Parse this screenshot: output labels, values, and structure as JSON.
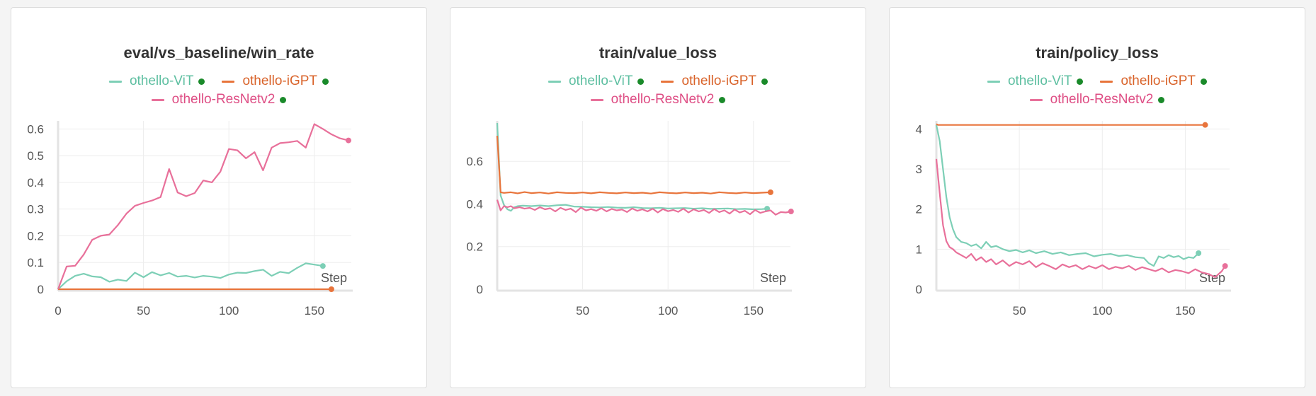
{
  "colors": {
    "vit": "#7dcfb6",
    "igpt": "#e8743b",
    "resnet": "#e8709a",
    "status_dot": "#1a8a2a",
    "axis": "#e3e3e3",
    "grid": "#ededed",
    "tick_text": "#555555"
  },
  "chart_data": [
    {
      "type": "line",
      "title": "eval/vs_baseline/win_rate",
      "xlabel": "Step",
      "ylabel": "",
      "xlim": [
        0,
        170
      ],
      "ylim": [
        0,
        0.63
      ],
      "x_ticks": [
        0,
        50,
        100,
        150
      ],
      "x_tick_labels": [
        "0",
        "50",
        "100",
        "150"
      ],
      "y_ticks": [
        0,
        0.1,
        0.2,
        0.3,
        0.4,
        0.5,
        0.6
      ],
      "y_tick_labels": [
        "0",
        "0.1",
        "0.2",
        "0.3",
        "0.4",
        "0.5",
        "0.6"
      ],
      "grid": true,
      "legend": "top-center",
      "series": [
        {
          "name": "othello-ViT",
          "color_key": "vit",
          "x": [
            0,
            5,
            10,
            15,
            20,
            25,
            30,
            35,
            40,
            45,
            50,
            55,
            60,
            65,
            70,
            75,
            80,
            85,
            90,
            95,
            100,
            105,
            110,
            115,
            120,
            125,
            130,
            135,
            140,
            145,
            150,
            155
          ],
          "y": [
            0,
            0.03,
            0.05,
            0.058,
            0.048,
            0.045,
            0.028,
            0.036,
            0.031,
            0.062,
            0.045,
            0.064,
            0.052,
            0.061,
            0.047,
            0.05,
            0.044,
            0.05,
            0.047,
            0.042,
            0.055,
            0.062,
            0.061,
            0.068,
            0.073,
            0.05,
            0.065,
            0.06,
            0.08,
            0.097,
            0.092,
            0.087
          ]
        },
        {
          "name": "othello-iGPT",
          "color_key": "igpt",
          "x": [
            0,
            40,
            80,
            120,
            160
          ],
          "y": [
            0,
            0,
            0,
            0,
            0
          ]
        },
        {
          "name": "othello-ResNetv2",
          "color_key": "resnet",
          "x": [
            0,
            5,
            10,
            15,
            20,
            25,
            30,
            35,
            40,
            45,
            50,
            55,
            60,
            65,
            70,
            75,
            80,
            85,
            90,
            95,
            100,
            105,
            110,
            115,
            120,
            125,
            130,
            135,
            140,
            145,
            150,
            155,
            160,
            165,
            170
          ],
          "y": [
            0,
            0.085,
            0.088,
            0.13,
            0.185,
            0.2,
            0.205,
            0.24,
            0.283,
            0.312,
            0.323,
            0.332,
            0.345,
            0.45,
            0.362,
            0.348,
            0.36,
            0.407,
            0.4,
            0.44,
            0.525,
            0.52,
            0.49,
            0.513,
            0.445,
            0.53,
            0.547,
            0.55,
            0.555,
            0.53,
            0.618,
            0.6,
            0.58,
            0.565,
            0.557
          ]
        }
      ]
    },
    {
      "type": "line",
      "title": "train/value_loss",
      "xlabel": "Step",
      "ylabel": "",
      "xlim": [
        0,
        170
      ],
      "ylim": [
        0,
        0.79
      ],
      "x_ticks": [
        50,
        100,
        150
      ],
      "x_tick_labels": [
        "50",
        "100",
        "150"
      ],
      "y_ticks": [
        0,
        0.2,
        0.4,
        0.6
      ],
      "y_tick_labels": [
        "0",
        "0.2",
        "0.4",
        "0.6"
      ],
      "grid": true,
      "legend": "top-center",
      "series": [
        {
          "name": "othello-ViT",
          "color_key": "vit",
          "x": [
            0,
            2,
            4,
            6,
            8,
            10,
            12,
            15,
            20,
            25,
            30,
            35,
            40,
            45,
            50,
            55,
            60,
            65,
            70,
            75,
            80,
            85,
            90,
            95,
            100,
            105,
            110,
            115,
            120,
            125,
            130,
            135,
            140,
            145,
            150,
            155,
            158
          ],
          "y": [
            0.78,
            0.44,
            0.395,
            0.375,
            0.368,
            0.385,
            0.39,
            0.392,
            0.39,
            0.393,
            0.39,
            0.394,
            0.396,
            0.388,
            0.387,
            0.385,
            0.384,
            0.386,
            0.383,
            0.382,
            0.385,
            0.381,
            0.38,
            0.382,
            0.379,
            0.38,
            0.381,
            0.378,
            0.38,
            0.377,
            0.378,
            0.379,
            0.376,
            0.377,
            0.375,
            0.376,
            0.378
          ]
        },
        {
          "name": "othello-iGPT",
          "color_key": "igpt",
          "x": [
            0,
            2,
            4,
            8,
            12,
            16,
            20,
            25,
            30,
            35,
            40,
            45,
            50,
            55,
            60,
            65,
            70,
            75,
            80,
            85,
            90,
            95,
            100,
            105,
            110,
            115,
            120,
            125,
            130,
            135,
            140,
            145,
            150,
            155,
            160
          ],
          "y": [
            0.72,
            0.455,
            0.452,
            0.455,
            0.45,
            0.456,
            0.451,
            0.454,
            0.449,
            0.455,
            0.452,
            0.451,
            0.454,
            0.45,
            0.455,
            0.452,
            0.45,
            0.454,
            0.451,
            0.453,
            0.449,
            0.455,
            0.452,
            0.45,
            0.454,
            0.451,
            0.453,
            0.449,
            0.455,
            0.452,
            0.45,
            0.454,
            0.451,
            0.453,
            0.455
          ]
        },
        {
          "name": "othello-ResNetv2",
          "color_key": "resnet",
          "x": [
            0,
            2,
            4,
            6,
            8,
            10,
            13,
            16,
            19,
            22,
            25,
            28,
            31,
            34,
            37,
            40,
            43,
            46,
            49,
            52,
            55,
            58,
            61,
            64,
            67,
            70,
            73,
            76,
            79,
            82,
            85,
            88,
            91,
            94,
            97,
            100,
            103,
            106,
            109,
            112,
            115,
            118,
            121,
            124,
            127,
            130,
            133,
            136,
            139,
            142,
            145,
            148,
            151,
            154,
            157,
            160,
            163,
            166,
            169,
            172
          ],
          "y": [
            0.42,
            0.37,
            0.39,
            0.385,
            0.39,
            0.38,
            0.385,
            0.378,
            0.382,
            0.372,
            0.385,
            0.375,
            0.38,
            0.365,
            0.382,
            0.372,
            0.378,
            0.362,
            0.383,
            0.37,
            0.376,
            0.368,
            0.38,
            0.365,
            0.377,
            0.37,
            0.374,
            0.362,
            0.379,
            0.368,
            0.375,
            0.365,
            0.378,
            0.36,
            0.376,
            0.366,
            0.372,
            0.363,
            0.378,
            0.36,
            0.375,
            0.365,
            0.372,
            0.358,
            0.376,
            0.362,
            0.37,
            0.355,
            0.374,
            0.36,
            0.368,
            0.352,
            0.372,
            0.358,
            0.365,
            0.37,
            0.35,
            0.362,
            0.36,
            0.365
          ]
        }
      ]
    },
    {
      "type": "line",
      "title": "train/policy_loss",
      "xlabel": "Step",
      "ylabel": "",
      "xlim": [
        0,
        175
      ],
      "ylim": [
        0,
        4.2
      ],
      "x_ticks": [
        50,
        100,
        150
      ],
      "x_tick_labels": [
        "50",
        "100",
        "150"
      ],
      "y_ticks": [
        0,
        1,
        2,
        3,
        4
      ],
      "y_tick_labels": [
        "0",
        "1",
        "2",
        "3",
        "4"
      ],
      "grid": true,
      "legend": "top-center",
      "series": [
        {
          "name": "othello-ViT",
          "color_key": "vit",
          "x": [
            0,
            2,
            4,
            6,
            8,
            10,
            12,
            15,
            18,
            21,
            24,
            27,
            30,
            33,
            36,
            40,
            44,
            48,
            52,
            56,
            60,
            65,
            70,
            75,
            80,
            85,
            90,
            95,
            100,
            105,
            110,
            115,
            120,
            125,
            128,
            131,
            134,
            137,
            140,
            143,
            146,
            149,
            152,
            155,
            158
          ],
          "y": [
            4.1,
            3.7,
            3.0,
            2.3,
            1.8,
            1.5,
            1.3,
            1.18,
            1.15,
            1.08,
            1.12,
            1.02,
            1.18,
            1.05,
            1.08,
            1.0,
            0.95,
            0.98,
            0.92,
            0.97,
            0.9,
            0.95,
            0.88,
            0.92,
            0.85,
            0.88,
            0.9,
            0.82,
            0.86,
            0.88,
            0.83,
            0.85,
            0.8,
            0.78,
            0.65,
            0.58,
            0.82,
            0.78,
            0.85,
            0.8,
            0.83,
            0.75,
            0.8,
            0.78,
            0.9
          ]
        },
        {
          "name": "othello-iGPT",
          "color_key": "igpt",
          "x": [
            0,
            1,
            10,
            20,
            40,
            60,
            80,
            100,
            120,
            140,
            162
          ],
          "y": [
            4.12,
            4.1,
            4.1,
            4.1,
            4.1,
            4.1,
            4.1,
            4.1,
            4.1,
            4.1,
            4.1
          ]
        },
        {
          "name": "othello-ResNetv2",
          "color_key": "resnet",
          "x": [
            0,
            2,
            4,
            6,
            8,
            10,
            12,
            15,
            18,
            21,
            24,
            27,
            30,
            33,
            36,
            40,
            44,
            48,
            52,
            56,
            60,
            64,
            68,
            72,
            76,
            80,
            84,
            88,
            92,
            96,
            100,
            104,
            108,
            112,
            116,
            120,
            124,
            128,
            132,
            136,
            140,
            144,
            148,
            152,
            156,
            160,
            164,
            168,
            172,
            174
          ],
          "y": [
            3.25,
            2.4,
            1.6,
            1.2,
            1.05,
            1.0,
            0.92,
            0.85,
            0.78,
            0.88,
            0.72,
            0.8,
            0.68,
            0.75,
            0.62,
            0.72,
            0.58,
            0.68,
            0.62,
            0.7,
            0.55,
            0.65,
            0.58,
            0.5,
            0.62,
            0.55,
            0.6,
            0.5,
            0.58,
            0.52,
            0.6,
            0.5,
            0.56,
            0.52,
            0.58,
            0.48,
            0.55,
            0.5,
            0.45,
            0.52,
            0.42,
            0.48,
            0.45,
            0.4,
            0.5,
            0.42,
            0.38,
            0.3,
            0.45,
            0.58
          ]
        }
      ]
    }
  ]
}
